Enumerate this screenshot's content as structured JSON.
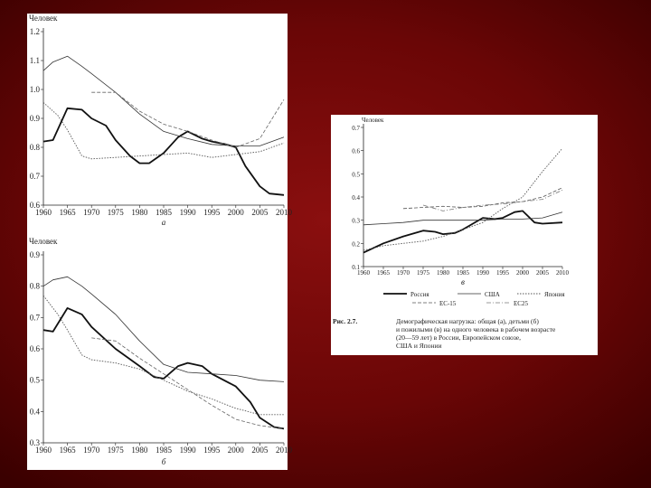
{
  "chart_data": [
    {
      "type": "line",
      "subtitle": "а",
      "ylabel": "Человек",
      "ylim": [
        0.6,
        1.2
      ],
      "yticks": [
        "0.6",
        "0.7",
        "0.8",
        "0.9",
        "1.0",
        "1.1",
        "1.2"
      ],
      "x": [
        1960,
        1965,
        1970,
        1975,
        1980,
        1985,
        1990,
        1995,
        2000,
        2005,
        2010
      ],
      "xlim": [
        1960,
        2010
      ],
      "series": [
        {
          "style": "thick",
          "color": "#111111",
          "points": [
            [
              1960,
              0.82
            ],
            [
              1962,
              0.825
            ],
            [
              1965,
              0.935
            ],
            [
              1968,
              0.93
            ],
            [
              1970,
              0.9
            ],
            [
              1973,
              0.875
            ],
            [
              1975,
              0.825
            ],
            [
              1978,
              0.77
            ],
            [
              1980,
              0.745
            ],
            [
              1982,
              0.745
            ],
            [
              1985,
              0.78
            ],
            [
              1988,
              0.835
            ],
            [
              1990,
              0.855
            ],
            [
              1993,
              0.83
            ],
            [
              1995,
              0.82
            ],
            [
              1998,
              0.81
            ],
            [
              2000,
              0.8
            ],
            [
              2002,
              0.735
            ],
            [
              2005,
              0.665
            ],
            [
              2007,
              0.64
            ],
            [
              2010,
              0.635
            ]
          ]
        },
        {
          "style": "thin",
          "color": "#333333",
          "points": [
            [
              1960,
              1.065
            ],
            [
              1962,
              1.095
            ],
            [
              1965,
              1.115
            ],
            [
              1968,
              1.08
            ],
            [
              1970,
              1.055
            ],
            [
              1975,
              0.99
            ],
            [
              1980,
              0.915
            ],
            [
              1985,
              0.855
            ],
            [
              1990,
              0.83
            ],
            [
              1995,
              0.81
            ],
            [
              2000,
              0.805
            ],
            [
              2005,
              0.805
            ],
            [
              2010,
              0.835
            ]
          ]
        },
        {
          "style": "dotted",
          "color": "#555555",
          "points": [
            [
              1960,
              0.955
            ],
            [
              1963,
              0.91
            ],
            [
              1965,
              0.86
            ],
            [
              1968,
              0.77
            ],
            [
              1970,
              0.76
            ],
            [
              1975,
              0.765
            ],
            [
              1980,
              0.77
            ],
            [
              1985,
              0.775
            ],
            [
              1990,
              0.78
            ],
            [
              1995,
              0.765
            ],
            [
              2000,
              0.775
            ],
            [
              2005,
              0.785
            ],
            [
              2010,
              0.815
            ]
          ]
        },
        {
          "style": "dashed",
          "color": "#666666",
          "points": [
            [
              1970,
              0.99
            ],
            [
              1975,
              0.99
            ],
            [
              1980,
              0.925
            ],
            [
              1985,
              0.88
            ],
            [
              1990,
              0.855
            ],
            [
              1995,
              0.825
            ],
            [
              2000,
              0.8
            ],
            [
              2005,
              0.83
            ],
            [
              2010,
              0.965
            ]
          ]
        }
      ]
    },
    {
      "type": "line",
      "subtitle": "б",
      "ylabel": "Человек",
      "ylim": [
        0.3,
        0.9
      ],
      "yticks": [
        "0.3",
        "0.4",
        "0.5",
        "0.6",
        "0.7",
        "0.8",
        "0.9"
      ],
      "x": [
        1960,
        1965,
        1970,
        1975,
        1980,
        1985,
        1990,
        1995,
        2000,
        2005,
        2010
      ],
      "xlim": [
        1960,
        2010
      ],
      "series": [
        {
          "style": "thick",
          "color": "#111111",
          "points": [
            [
              1960,
              0.66
            ],
            [
              1962,
              0.655
            ],
            [
              1965,
              0.73
            ],
            [
              1968,
              0.71
            ],
            [
              1970,
              0.67
            ],
            [
              1975,
              0.6
            ],
            [
              1980,
              0.545
            ],
            [
              1983,
              0.51
            ],
            [
              1985,
              0.505
            ],
            [
              1988,
              0.545
            ],
            [
              1990,
              0.555
            ],
            [
              1993,
              0.545
            ],
            [
              1995,
              0.52
            ],
            [
              2000,
              0.48
            ],
            [
              2003,
              0.43
            ],
            [
              2005,
              0.38
            ],
            [
              2008,
              0.35
            ],
            [
              2010,
              0.345
            ]
          ]
        },
        {
          "style": "thin",
          "color": "#333333",
          "points": [
            [
              1960,
              0.8
            ],
            [
              1962,
              0.82
            ],
            [
              1965,
              0.83
            ],
            [
              1968,
              0.8
            ],
            [
              1970,
              0.775
            ],
            [
              1975,
              0.71
            ],
            [
              1980,
              0.625
            ],
            [
              1985,
              0.55
            ],
            [
              1990,
              0.525
            ],
            [
              1995,
              0.52
            ],
            [
              2000,
              0.515
            ],
            [
              2005,
              0.5
            ],
            [
              2010,
              0.495
            ]
          ]
        },
        {
          "style": "dotted",
          "color": "#555555",
          "points": [
            [
              1960,
              0.77
            ],
            [
              1963,
              0.71
            ],
            [
              1965,
              0.66
            ],
            [
              1968,
              0.58
            ],
            [
              1970,
              0.565
            ],
            [
              1975,
              0.555
            ],
            [
              1980,
              0.535
            ],
            [
              1985,
              0.5
            ],
            [
              1990,
              0.465
            ],
            [
              1995,
              0.44
            ],
            [
              2000,
              0.41
            ],
            [
              2005,
              0.39
            ],
            [
              2010,
              0.39
            ]
          ]
        },
        {
          "style": "dashed",
          "color": "#666666",
          "points": [
            [
              1970,
              0.635
            ],
            [
              1975,
              0.625
            ],
            [
              1980,
              0.57
            ],
            [
              1985,
              0.52
            ],
            [
              1990,
              0.47
            ],
            [
              1995,
              0.42
            ],
            [
              2000,
              0.375
            ],
            [
              2005,
              0.355
            ],
            [
              2010,
              0.345
            ]
          ]
        }
      ]
    },
    {
      "type": "line",
      "subtitle": "в",
      "ylabel": "Человек",
      "ylim": [
        0.1,
        0.7
      ],
      "yticks": [
        "0.1",
        "0.2",
        "0.3",
        "0.4",
        "0.5",
        "0.6",
        "0.7"
      ],
      "x": [
        1960,
        1965,
        1970,
        1975,
        1980,
        1985,
        1990,
        1995,
        2000,
        2005,
        2010
      ],
      "xlim": [
        1960,
        2010
      ],
      "legend": [
        "Россия",
        "США",
        "Япония",
        "ЕС-15",
        "ЕС25"
      ],
      "series": [
        {
          "name": "Россия",
          "style": "thick",
          "color": "#111111",
          "points": [
            [
              1960,
              0.16
            ],
            [
              1965,
              0.2
            ],
            [
              1970,
              0.23
            ],
            [
              1975,
              0.255
            ],
            [
              1978,
              0.25
            ],
            [
              1980,
              0.24
            ],
            [
              1983,
              0.245
            ],
            [
              1985,
              0.26
            ],
            [
              1990,
              0.31
            ],
            [
              1993,
              0.305
            ],
            [
              1995,
              0.31
            ],
            [
              1998,
              0.335
            ],
            [
              2000,
              0.34
            ],
            [
              2003,
              0.29
            ],
            [
              2005,
              0.285
            ],
            [
              2010,
              0.29
            ]
          ]
        },
        {
          "name": "США",
          "style": "thin",
          "color": "#333333",
          "points": [
            [
              1960,
              0.28
            ],
            [
              1965,
              0.285
            ],
            [
              1970,
              0.29
            ],
            [
              1975,
              0.3
            ],
            [
              1980,
              0.3
            ],
            [
              1985,
              0.3
            ],
            [
              1990,
              0.3
            ],
            [
              1995,
              0.305
            ],
            [
              2000,
              0.305
            ],
            [
              2005,
              0.31
            ],
            [
              2010,
              0.335
            ]
          ]
        },
        {
          "name": "Япония",
          "style": "dotted",
          "color": "#555555",
          "points": [
            [
              1960,
              0.17
            ],
            [
              1965,
              0.19
            ],
            [
              1970,
              0.2
            ],
            [
              1975,
              0.21
            ],
            [
              1980,
              0.23
            ],
            [
              1985,
              0.26
            ],
            [
              1990,
              0.29
            ],
            [
              1995,
              0.35
            ],
            [
              2000,
              0.4
            ],
            [
              2005,
              0.51
            ],
            [
              2010,
              0.61
            ]
          ]
        },
        {
          "name": "ЕС-15",
          "style": "dashed",
          "color": "#555555",
          "points": [
            [
              1970,
              0.35
            ],
            [
              1975,
              0.355
            ],
            [
              1980,
              0.36
            ],
            [
              1985,
              0.355
            ],
            [
              1990,
              0.36
            ],
            [
              1995,
              0.375
            ],
            [
              2000,
              0.38
            ],
            [
              2005,
              0.4
            ],
            [
              2010,
              0.44
            ]
          ]
        },
        {
          "name": "ЕС25",
          "style": "dash-dot",
          "color": "#777777",
          "points": [
            [
              1975,
              0.365
            ],
            [
              1980,
              0.34
            ],
            [
              1985,
              0.355
            ],
            [
              1990,
              0.365
            ],
            [
              1995,
              0.37
            ],
            [
              2000,
              0.38
            ],
            [
              2005,
              0.39
            ],
            [
              2010,
              0.43
            ]
          ]
        }
      ]
    }
  ],
  "caption": {
    "label": "Рис. 2.7.",
    "lines": [
      "Демографическая нагрузка: общая (а), детьми (б)",
      "и пожилыми (в) на одного человека в рабочем возрасте",
      "(20—59 лет) в России, Европейском союзе,",
      "США и Японии"
    ]
  }
}
